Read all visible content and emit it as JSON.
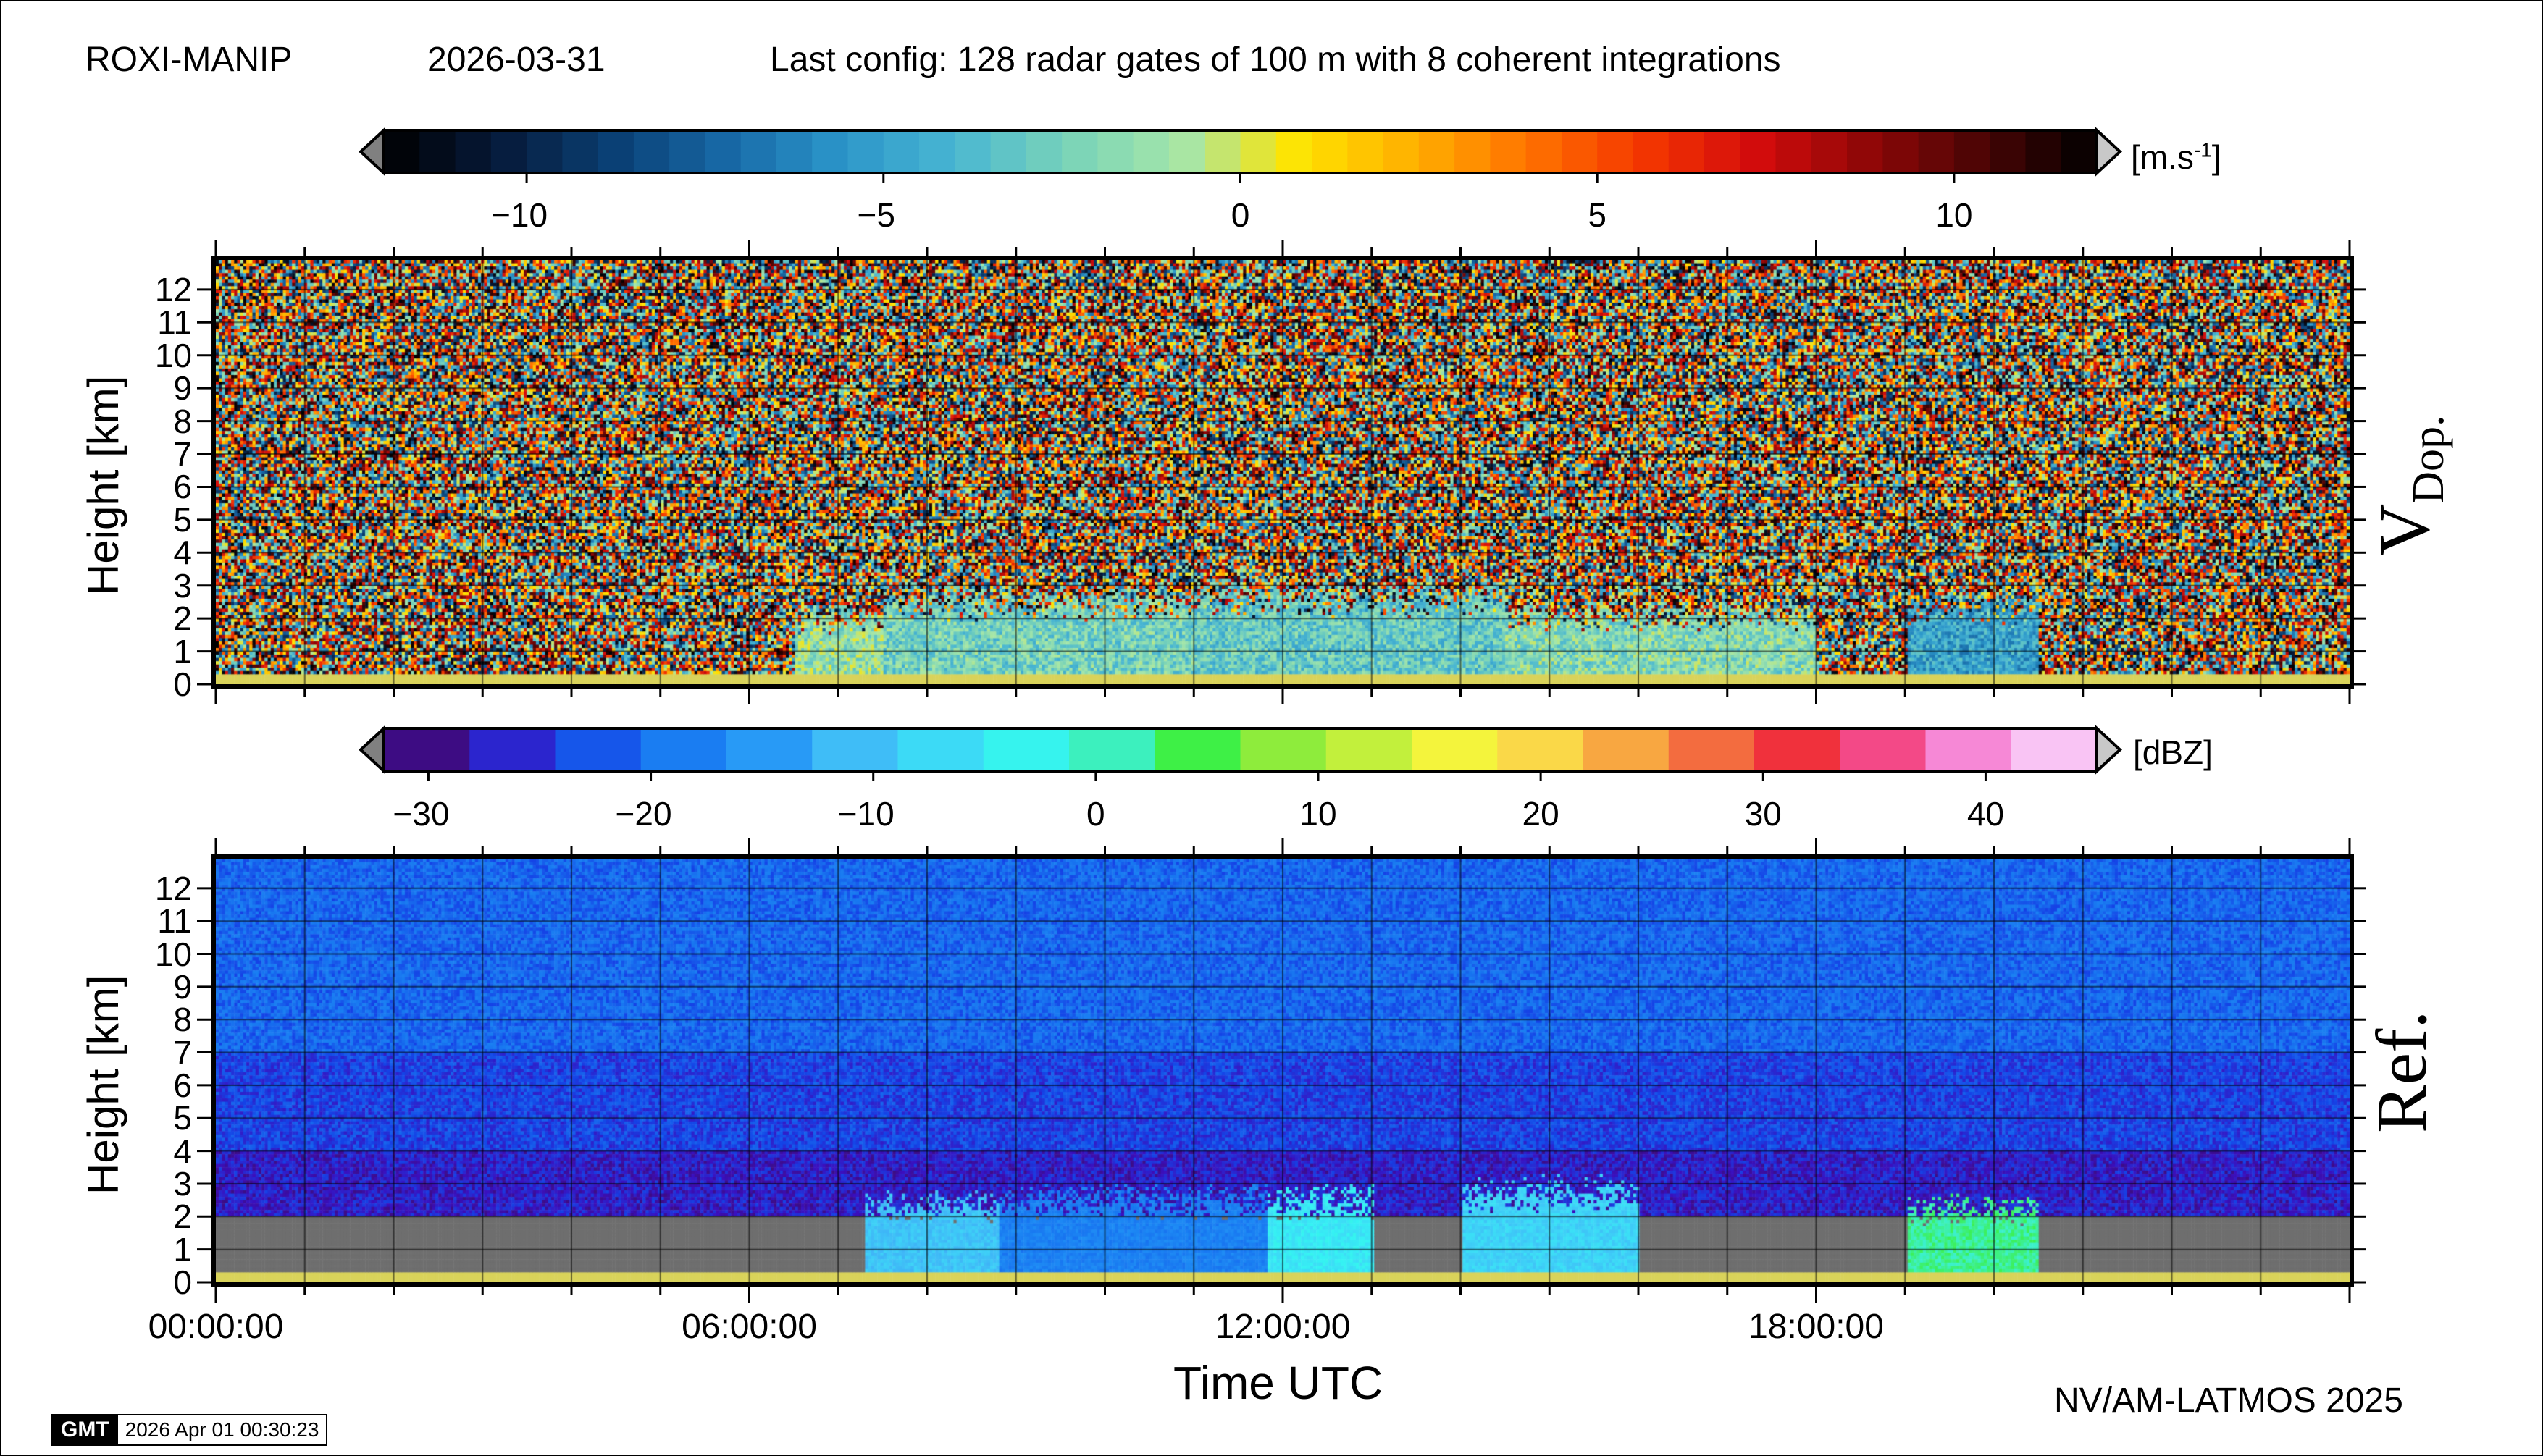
{
  "header": {
    "station": "ROXI-MANIP",
    "date": "2026-03-31",
    "config": "Last config: 128 radar gates of 100 m with 8 coherent integrations"
  },
  "colorbars": {
    "velocity": {
      "unit_prefix": "[m.s",
      "unit_exp": "-1",
      "unit_suffix": "]",
      "ticks": [
        "−10",
        "−5",
        "0",
        "5",
        "10"
      ],
      "range": [
        -12,
        12
      ]
    },
    "reflectivity": {
      "unit": "[dBZ]",
      "ticks": [
        "−30",
        "−20",
        "−10",
        "0",
        "10",
        "20",
        "30",
        "40"
      ],
      "range": [
        -32,
        45
      ]
    }
  },
  "panels": {
    "top_label_main": "V",
    "top_label_sub": "Dop.",
    "bottom_label": "Ref.",
    "ylabel": "Height [km]"
  },
  "xaxis": {
    "label": "Time UTC",
    "ticks": [
      "00:00:00",
      "06:00:00",
      "12:00:00",
      "18:00:00"
    ]
  },
  "footer": {
    "credit": "NV/AM-LATMOS 2025",
    "gmt_logo": "GMT",
    "timestamp": "2026 Apr 01 00:30:23"
  },
  "chart_data": [
    {
      "type": "heatmap",
      "name": "Doppler velocity",
      "ylabel": "Height [km]",
      "xlabel": "Time UTC",
      "ylim": [
        0,
        12.9
      ],
      "xlim": [
        0,
        24
      ],
      "yticks": [
        0,
        1,
        2,
        3,
        4,
        5,
        6,
        7,
        8,
        9,
        10,
        11,
        12
      ],
      "xticks_hours": [
        0,
        6,
        12,
        18
      ],
      "colorbar_unit": "[m.s-1]",
      "colorbar_range": [
        -12,
        12
      ],
      "background": "random noise above ~2 km",
      "signal_regions": [
        {
          "start_h": 6.5,
          "end_h": 7.5,
          "top_km": 2.4,
          "velocity": -1.5
        },
        {
          "start_h": 7.5,
          "end_h": 11.0,
          "top_km": 3.0,
          "velocity": -2.5
        },
        {
          "start_h": 11.0,
          "end_h": 14.5,
          "top_km": 3.2,
          "velocity": -3.0
        },
        {
          "start_h": 14.5,
          "end_h": 18.0,
          "top_km": 2.5,
          "velocity": -2.0
        },
        {
          "start_h": 19.0,
          "end_h": 20.5,
          "top_km": 2.8,
          "velocity": -5.0
        }
      ]
    },
    {
      "type": "heatmap",
      "name": "Reflectivity",
      "ylabel": "Height [km]",
      "xlabel": "Time UTC",
      "ylim": [
        0,
        12.9
      ],
      "xlim": [
        0,
        24
      ],
      "yticks": [
        0,
        1,
        2,
        3,
        4,
        5,
        6,
        7,
        8,
        9,
        10,
        11,
        12
      ],
      "xticks_hours": [
        0,
        6,
        12,
        18
      ],
      "colorbar_unit": "[dBZ]",
      "colorbar_range": [
        -32,
        45
      ],
      "background": "noise around -20 to -28 dBZ, masked grey below 2 km",
      "signal_regions": [
        {
          "start_h": 7.3,
          "end_h": 8.8,
          "top_km": 2.8,
          "dbz": -10
        },
        {
          "start_h": 8.8,
          "end_h": 11.8,
          "top_km": 3.0,
          "dbz": -18
        },
        {
          "start_h": 11.8,
          "end_h": 13.0,
          "top_km": 3.0,
          "dbz": -5
        },
        {
          "start_h": 14.0,
          "end_h": 16.0,
          "top_km": 3.3,
          "dbz": -8
        },
        {
          "start_h": 19.0,
          "end_h": 20.5,
          "top_km": 2.7,
          "dbz": 2
        }
      ]
    }
  ],
  "colors": {
    "velocity_stops": [
      "#000000",
      "#061a3a",
      "#0a3f73",
      "#1768a6",
      "#2b95c9",
      "#49b6d2",
      "#79d3b8",
      "#a6e6a8",
      "#ffe400",
      "#ffb000",
      "#ff7400",
      "#f53800",
      "#d40c0c",
      "#8f0707",
      "#4a0505",
      "#000000"
    ],
    "reflectivity_stops": [
      "#3e0a4f",
      "#3b0fbd",
      "#1543e6",
      "#1875f0",
      "#1f8ff5",
      "#3fb6f7",
      "#3ed5f7",
      "#35f3f3",
      "#3cf0c8",
      "#3cf046",
      "#90ec3c",
      "#c6f03c",
      "#faf53c",
      "#fad24a",
      "#f79a3f",
      "#f15b3f",
      "#f01d3b",
      "#f564b4",
      "#f7a3f0",
      "#fbe1f8"
    ],
    "masked": "#6e6e6e",
    "surface_band": "#d9d35a"
  }
}
